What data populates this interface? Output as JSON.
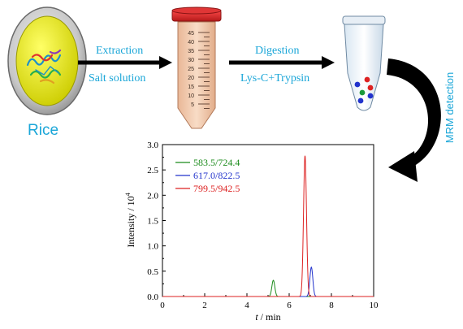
{
  "workflow": {
    "sample_label": "Rice",
    "step1": {
      "top": "Extraction",
      "bottom": "Salt solution"
    },
    "step2": {
      "top": "Digestion",
      "bottom": "Lys-C+Trypsin"
    },
    "step3": {
      "label": "MRM detection"
    },
    "tube_scale": [
      "45",
      "40",
      "35",
      "30",
      "25",
      "20",
      "15",
      "10",
      "5"
    ]
  },
  "colors": {
    "accent": "#1aa6d8",
    "rice_yellow": "#e6e600",
    "tube_cap": "#d9272e",
    "tube_body": "#f0cfb4",
    "series_green": "#1a8a1a",
    "series_blue": "#2233cc",
    "series_red": "#dd2222"
  },
  "chart_data": {
    "type": "line",
    "xlabel_italic": "t",
    "xlabel_rest": " / min",
    "ylabel_main": "Intensity / 10",
    "ylabel_exp": "4",
    "xlim": [
      0,
      10
    ],
    "ylim": [
      0,
      3.0
    ],
    "x_ticks": [
      "0",
      "2",
      "4",
      "6",
      "8",
      "10"
    ],
    "y_ticks": [
      "0.0",
      "0.5",
      "1.0",
      "1.5",
      "2.0",
      "2.5",
      "3.0"
    ],
    "legend_position": "top-left",
    "series": [
      {
        "name": "583.5/724.4",
        "color": "#1a8a1a",
        "peak_x": 5.25,
        "peak_y": 0.32
      },
      {
        "name": "617.0/822.5",
        "color": "#2233cc",
        "peak_x": 7.05,
        "peak_y": 0.58
      },
      {
        "name": "799.5/942.5",
        "color": "#dd2222",
        "peak_x": 6.75,
        "peak_y": 2.78
      }
    ]
  }
}
